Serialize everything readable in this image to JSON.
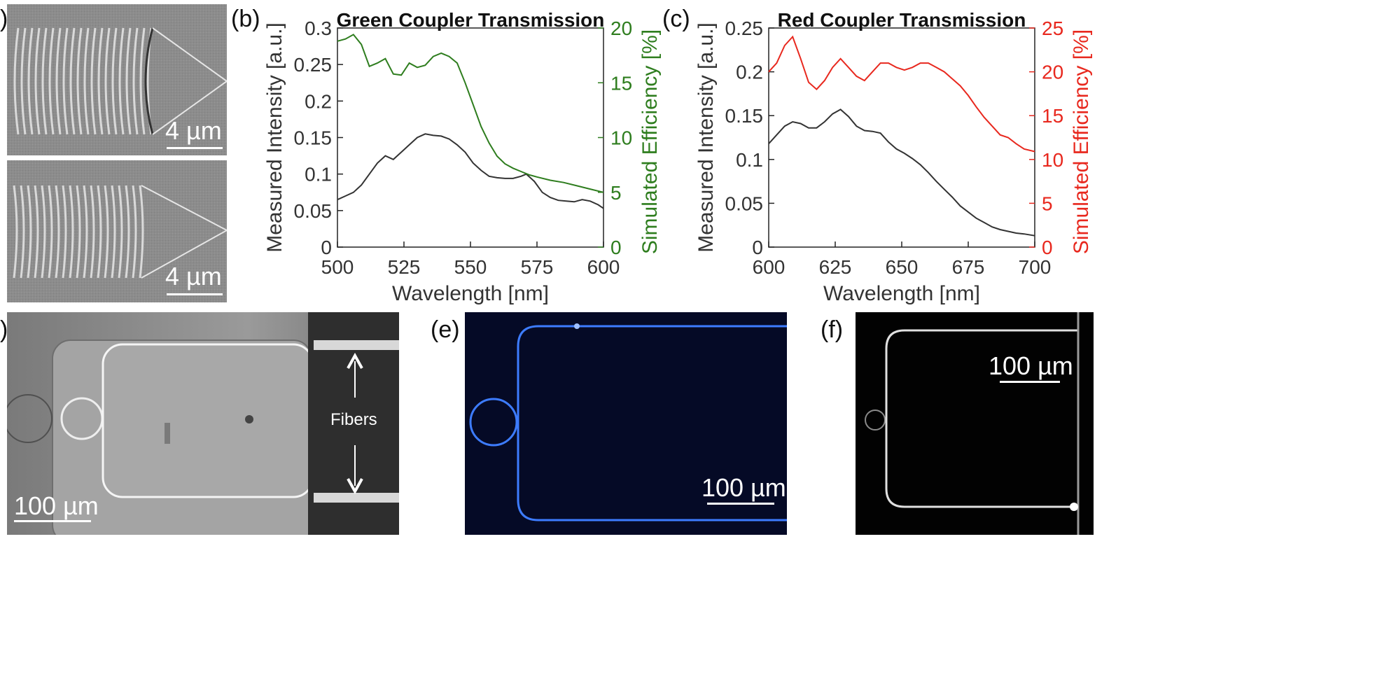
{
  "panel_labels": {
    "a": ")",
    "b": "(b)",
    "c": "(c)",
    "d": ")",
    "e": "(e)",
    "f": "(f)"
  },
  "sem_top": {
    "scale_text": "4 µm"
  },
  "sem_bottom": {
    "scale_text": "4 µm"
  },
  "panel_d": {
    "scale_text": "100 µm",
    "fibers_label": "Fibers"
  },
  "panel_e": {
    "scale_text": "100 µm"
  },
  "panel_f": {
    "scale_text": "100 µm"
  },
  "colors": {
    "green": "#2e7d1e",
    "red": "#e8281e",
    "black": "#333333",
    "blue": "#2f6bff"
  },
  "chart_data": [
    {
      "type": "line",
      "title": "Green Coupler Transmission",
      "xlabel": "Wavelength [nm]",
      "ylabel": "Measured Intensity [a.u.]",
      "y2label": "Simulated Efficiency [%]",
      "xlim": [
        500,
        600
      ],
      "ylim": [
        0,
        0.3
      ],
      "y2lim": [
        0,
        20
      ],
      "xticks": [
        "500",
        "525",
        "550",
        "575",
        "600"
      ],
      "yticks": [
        "0",
        "0.05",
        "0.1",
        "0.15",
        "0.2",
        "0.25",
        "0.3"
      ],
      "y2ticks": [
        "0",
        "5",
        "10",
        "15",
        "20"
      ],
      "series": [
        {
          "name": "Measured Intensity",
          "axis": "left",
          "color": "#333333",
          "x": [
            500,
            503,
            506,
            509,
            512,
            515,
            518,
            521,
            524,
            527,
            530,
            533,
            536,
            539,
            542,
            545,
            548,
            551,
            554,
            557,
            560,
            563,
            566,
            569,
            571,
            574,
            577,
            580,
            583,
            586,
            589,
            592,
            595,
            598,
            600
          ],
          "y": [
            0.065,
            0.07,
            0.075,
            0.085,
            0.1,
            0.115,
            0.125,
            0.12,
            0.13,
            0.14,
            0.15,
            0.155,
            0.153,
            0.152,
            0.148,
            0.14,
            0.13,
            0.115,
            0.105,
            0.097,
            0.095,
            0.094,
            0.094,
            0.097,
            0.1,
            0.09,
            0.075,
            0.068,
            0.064,
            0.063,
            0.062,
            0.065,
            0.063,
            0.058,
            0.053
          ]
        },
        {
          "name": "Simulated Efficiency",
          "axis": "right",
          "color": "#2e7d1e",
          "x": [
            500,
            503,
            506,
            509,
            512,
            515,
            518,
            521,
            524,
            527,
            530,
            533,
            536,
            539,
            542,
            545,
            548,
            551,
            554,
            557,
            560,
            563,
            566,
            569,
            572,
            575,
            580,
            585,
            590,
            595,
            600
          ],
          "y": [
            18.8,
            19.0,
            19.4,
            18.5,
            16.5,
            16.8,
            17.2,
            15.8,
            15.7,
            16.8,
            16.4,
            16.6,
            17.4,
            17.7,
            17.4,
            16.8,
            15.0,
            13.0,
            11.0,
            9.5,
            8.3,
            7.6,
            7.2,
            6.9,
            6.6,
            6.4,
            6.1,
            5.9,
            5.6,
            5.3,
            5.0
          ]
        }
      ]
    },
    {
      "type": "line",
      "title": "Red Coupler Transmission",
      "xlabel": "Wavelength [nm]",
      "ylabel": "Measured Intensity [a.u.]",
      "y2label": "Simulated Efficiency [%]",
      "xlim": [
        600,
        700
      ],
      "ylim": [
        0,
        0.25
      ],
      "y2lim": [
        0,
        25
      ],
      "xticks": [
        "600",
        "625",
        "650",
        "675",
        "700"
      ],
      "yticks": [
        "0",
        "0.05",
        "0.1",
        "0.15",
        "0.2",
        "0.25"
      ],
      "y2ticks": [
        "0",
        "5",
        "10",
        "15",
        "20",
        "25"
      ],
      "series": [
        {
          "name": "Measured Intensity",
          "axis": "left",
          "color": "#333333",
          "x": [
            600,
            603,
            606,
            609,
            612,
            615,
            618,
            621,
            624,
            627,
            630,
            633,
            636,
            639,
            642,
            645,
            648,
            651,
            654,
            657,
            660,
            663,
            666,
            669,
            672,
            675,
            678,
            681,
            684,
            687,
            690,
            693,
            696,
            700
          ],
          "y": [
            0.118,
            0.128,
            0.138,
            0.143,
            0.141,
            0.136,
            0.136,
            0.143,
            0.152,
            0.157,
            0.149,
            0.138,
            0.133,
            0.132,
            0.13,
            0.12,
            0.112,
            0.107,
            0.101,
            0.094,
            0.085,
            0.075,
            0.066,
            0.057,
            0.047,
            0.04,
            0.033,
            0.028,
            0.023,
            0.02,
            0.018,
            0.016,
            0.015,
            0.013
          ]
        },
        {
          "name": "Simulated Efficiency",
          "axis": "right",
          "color": "#e8281e",
          "x": [
            600,
            603,
            606,
            609,
            612,
            615,
            618,
            621,
            624,
            627,
            630,
            633,
            636,
            639,
            642,
            645,
            648,
            651,
            654,
            657,
            660,
            663,
            666,
            669,
            672,
            675,
            678,
            681,
            684,
            687,
            690,
            693,
            696,
            700
          ],
          "y": [
            20.0,
            21.0,
            23.0,
            24.0,
            21.5,
            18.8,
            18.0,
            19.0,
            20.5,
            21.5,
            20.5,
            19.5,
            19.0,
            20.0,
            21.0,
            21.0,
            20.5,
            20.2,
            20.5,
            21.0,
            21.0,
            20.5,
            20.0,
            19.2,
            18.4,
            17.3,
            16.0,
            14.8,
            13.8,
            12.8,
            12.5,
            11.8,
            11.2,
            10.9
          ]
        }
      ]
    }
  ]
}
